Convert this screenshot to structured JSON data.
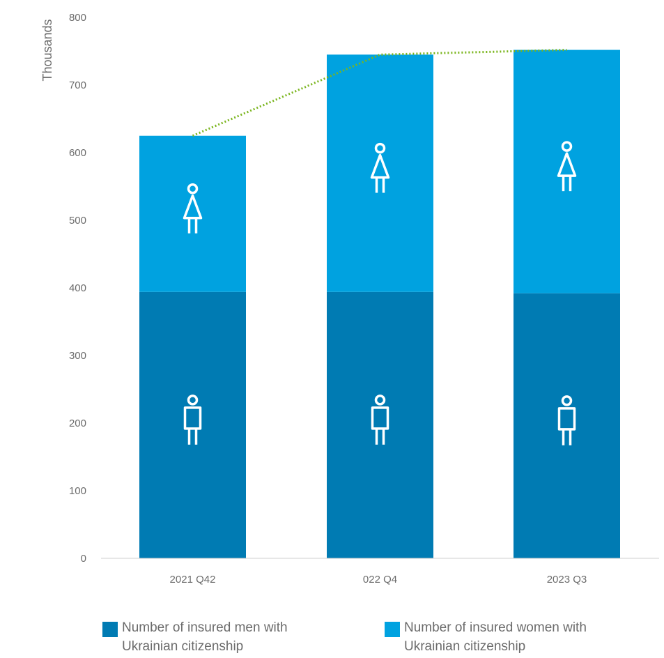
{
  "chart_data": {
    "type": "bar",
    "stacked": true,
    "categories": [
      "2021 Q42",
      "022 Q4",
      "2023 Q3"
    ],
    "series": [
      {
        "name": "Number of insured men with Ukrainian citizenship",
        "values": [
          394,
          394,
          392
        ],
        "color": "#007bb3",
        "icon": "man-icon"
      },
      {
        "name": "Number of insured women with Ukrainian citizenship",
        "values": [
          231,
          351,
          360
        ],
        "color": "#00a2e0",
        "icon": "woman-icon"
      }
    ],
    "trend_line": {
      "values": [
        625,
        745,
        752
      ],
      "color": "#7ab51d",
      "style": "dotted"
    },
    "ylabel": "Thousands",
    "ylim": [
      0,
      800
    ],
    "yticks": [
      0,
      100,
      200,
      300,
      400,
      500,
      600,
      700,
      800
    ],
    "grid": false,
    "legend_position": "bottom"
  }
}
